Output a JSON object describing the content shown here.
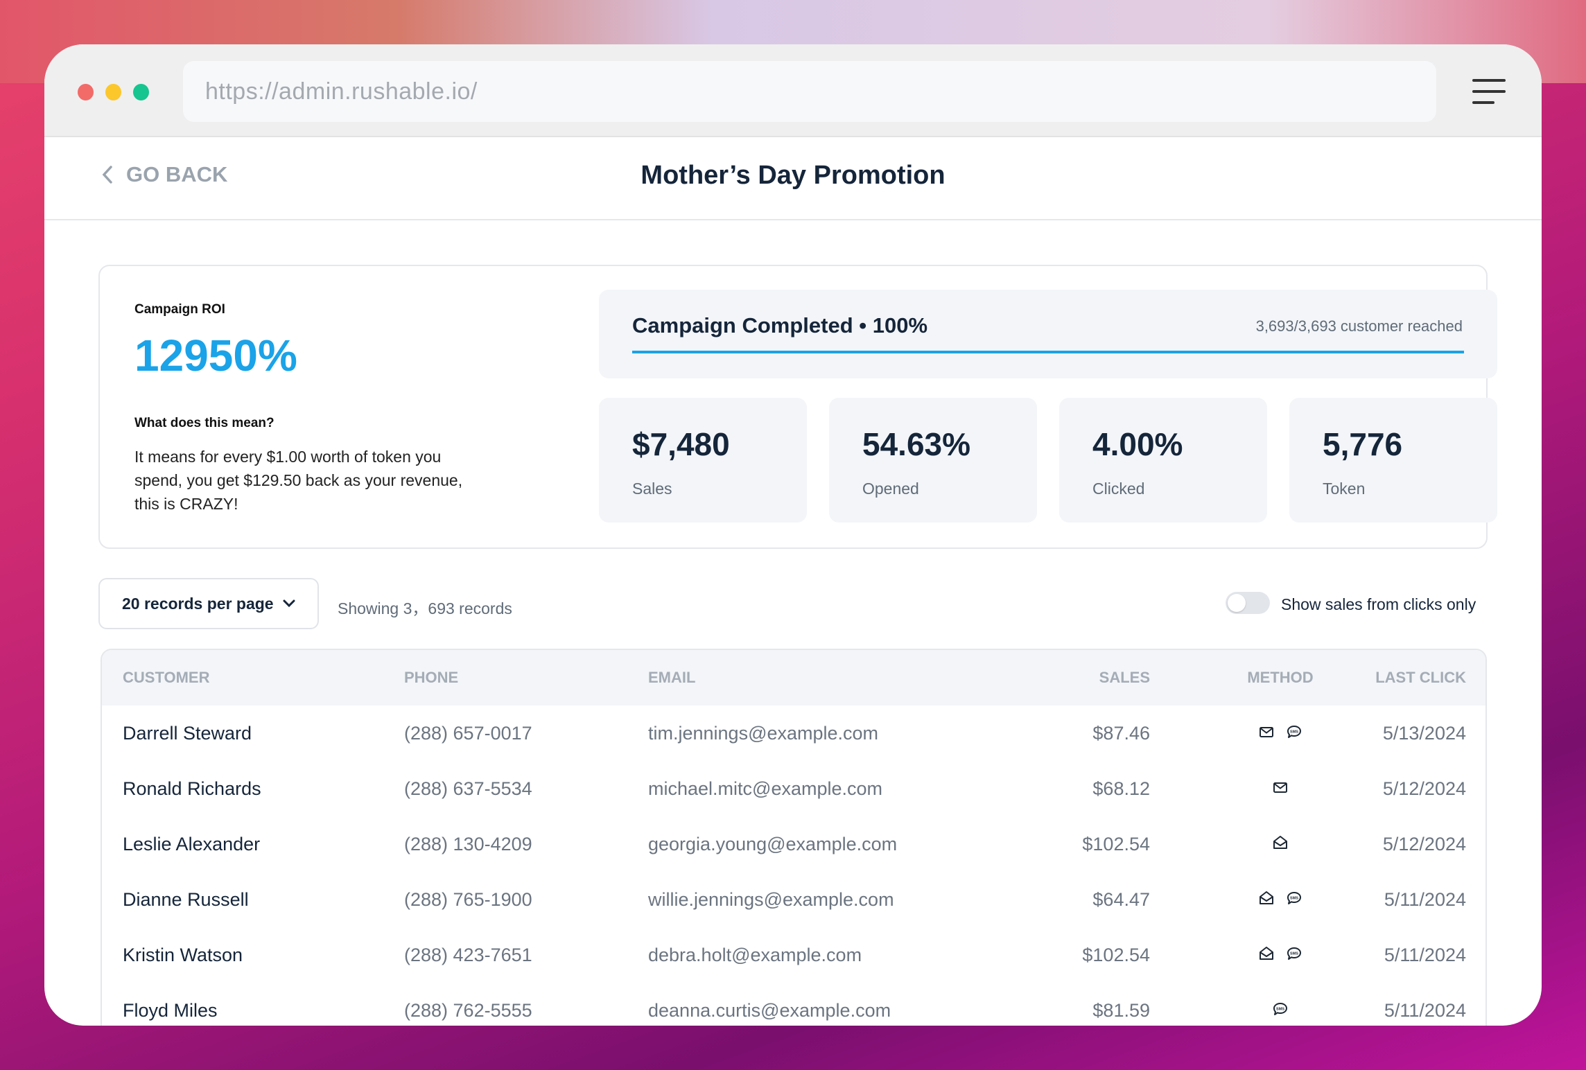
{
  "browser": {
    "url": "https://admin.rushable.io/"
  },
  "header": {
    "back_label": "GO BACK",
    "title": "Mother’s Day Promotion"
  },
  "roi": {
    "label": "Campaign ROI",
    "value": "12950%",
    "meaning_label": "What does this mean?",
    "meaning_text": "It means for every $1.00 worth of token you spend, you get $129.50 back as your revenue, this is CRAZY!"
  },
  "progress": {
    "title": "Campaign Completed • 100%",
    "reached": "3,693/3,693 customer reached",
    "percent": 100,
    "color": "#1aa3e8"
  },
  "cards": [
    {
      "value": "$7,480",
      "label": "Sales"
    },
    {
      "value": "54.63%",
      "label": "Opened"
    },
    {
      "value": "4.00%",
      "label": "Clicked"
    },
    {
      "value": "5,776",
      "label": "Token"
    }
  ],
  "controls": {
    "per_page": "20 records per page",
    "showing": "Showing 3，693 records",
    "toggle_label": "Show sales from clicks only",
    "toggle_on": false
  },
  "table": {
    "columns": [
      "CUSTOMER",
      "PHONE",
      "EMAIL",
      "SALES",
      "METHOD",
      "LAST CLICK"
    ],
    "rows": [
      {
        "customer": "Darrell Steward",
        "phone": "(288) 657-0017",
        "email": "tim.jennings@example.com",
        "sales": "$87.46",
        "method": [
          "email-closed",
          "sms"
        ],
        "last_click": "5/13/2024"
      },
      {
        "customer": "Ronald Richards",
        "phone": "(288) 637-5534",
        "email": "michael.mitc@example.com",
        "sales": "$68.12",
        "method": [
          "email-closed"
        ],
        "last_click": "5/12/2024"
      },
      {
        "customer": "Leslie Alexander",
        "phone": "(288) 130-4209",
        "email": "georgia.young@example.com",
        "sales": "$102.54",
        "method": [
          "email-open"
        ],
        "last_click": "5/12/2024"
      },
      {
        "customer": "Dianne Russell",
        "phone": "(288) 765-1900",
        "email": "willie.jennings@example.com",
        "sales": "$64.47",
        "method": [
          "email-open",
          "sms"
        ],
        "last_click": "5/11/2024"
      },
      {
        "customer": "Kristin Watson",
        "phone": "(288) 423-7651",
        "email": "debra.holt@example.com",
        "sales": "$102.54",
        "method": [
          "email-open",
          "sms"
        ],
        "last_click": "5/11/2024"
      },
      {
        "customer": "Floyd Miles",
        "phone": "(288) 762-5555",
        "email": "deanna.curtis@example.com",
        "sales": "$81.59",
        "method": [
          "sms"
        ],
        "last_click": "5/11/2024"
      }
    ]
  }
}
